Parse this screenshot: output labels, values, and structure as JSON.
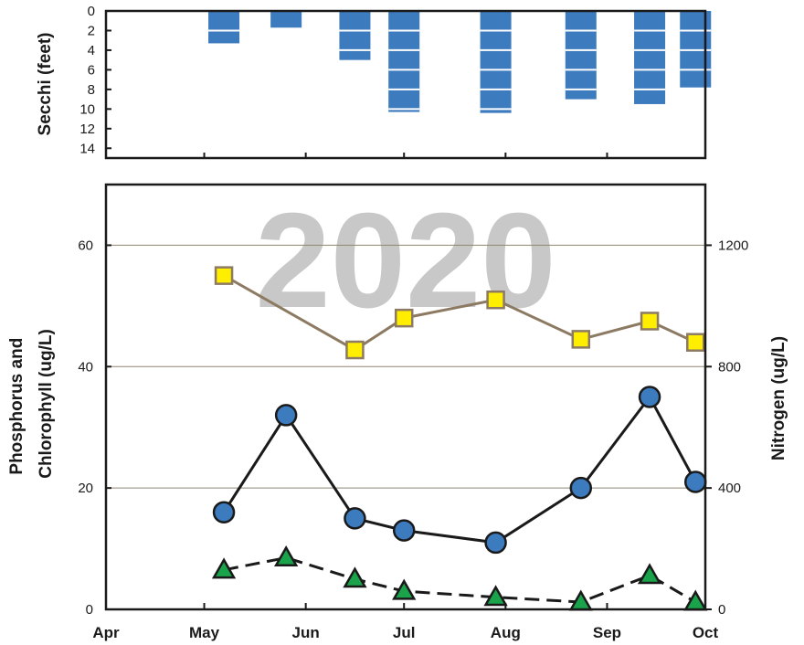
{
  "chart_data": [
    {
      "type": "bar",
      "panel": "secchi",
      "ylabel": "Secchi (feet)",
      "yticks": [
        0,
        2,
        4,
        6,
        8,
        10,
        12,
        14
      ],
      "ylim": [
        0,
        15
      ],
      "y_inverted": true,
      "bar_color": "#3d7bbf",
      "x_range": [
        "Apr 1",
        "Oct 1"
      ],
      "points": [
        {
          "date": "May 7",
          "depth": 3.3
        },
        {
          "date": "May 26",
          "depth": 1.7
        },
        {
          "date": "Jun 16",
          "depth": 5.0
        },
        {
          "date": "Jul 1",
          "depth": 10.3
        },
        {
          "date": "Jul 29",
          "depth": 10.4
        },
        {
          "date": "Aug 24",
          "depth": 9.0
        },
        {
          "date": "Sep 14",
          "depth": 9.5
        },
        {
          "date": "Sep 28",
          "depth": 7.8
        }
      ]
    },
    {
      "type": "line",
      "panel": "nutrients",
      "watermark": "2020",
      "ylabel": "Phosphorus and Chlorophyll (ug/L)",
      "ylabel_lines": [
        "Phosphorus and",
        "Chlorophyll (ug/L)"
      ],
      "ylabel_right": "Nitrogen (ug/L)",
      "ylim": [
        0,
        70
      ],
      "yticks": [
        0,
        20,
        40,
        60
      ],
      "ylim_right": [
        0,
        1400
      ],
      "yticks_right": [
        0,
        400,
        800,
        1200
      ],
      "grid": true,
      "x_ticks": [
        "Apr",
        "May",
        "Jun",
        "Jul",
        "Aug",
        "Sep",
        "Oct"
      ],
      "series": [
        {
          "axis": "right",
          "marker": "square",
          "line_style": "solid",
          "line_color": "#8c7a62",
          "marker_color": "#ffee00",
          "points": [
            {
              "date": "May 7",
              "value": 1100
            },
            {
              "date": "Jun 16",
              "value": 855
            },
            {
              "date": "Jul 1",
              "value": 960
            },
            {
              "date": "Jul 29",
              "value": 1020
            },
            {
              "date": "Aug 24",
              "value": 890
            },
            {
              "date": "Sep 14",
              "value": 950
            },
            {
              "date": "Sep 28",
              "value": 880
            }
          ]
        },
        {
          "axis": "left",
          "marker": "circle",
          "line_style": "solid",
          "line_color": "#1a1a1a",
          "marker_color": "#3d7bbf",
          "points": [
            {
              "date": "May 7",
              "value": 16
            },
            {
              "date": "May 26",
              "value": 32
            },
            {
              "date": "Jun 16",
              "value": 15
            },
            {
              "date": "Jul 1",
              "value": 13
            },
            {
              "date": "Jul 29",
              "value": 11
            },
            {
              "date": "Aug 24",
              "value": 20
            },
            {
              "date": "Sep 14",
              "value": 35
            },
            {
              "date": "Sep 28",
              "value": 21
            }
          ]
        },
        {
          "axis": "left",
          "marker": "triangle",
          "line_style": "dashed",
          "line_color": "#1a1a1a",
          "marker_color": "#1aa34a",
          "points": [
            {
              "date": "May 7",
              "value": 6.5
            },
            {
              "date": "May 26",
              "value": 8.5
            },
            {
              "date": "Jun 16",
              "value": 5
            },
            {
              "date": "Jul 1",
              "value": 3
            },
            {
              "date": "Jul 29",
              "value": 2
            },
            {
              "date": "Aug 24",
              "value": 1.2
            },
            {
              "date": "Sep 14",
              "value": 5.6
            },
            {
              "date": "Sep 28",
              "value": 1.2
            }
          ]
        }
      ]
    }
  ]
}
